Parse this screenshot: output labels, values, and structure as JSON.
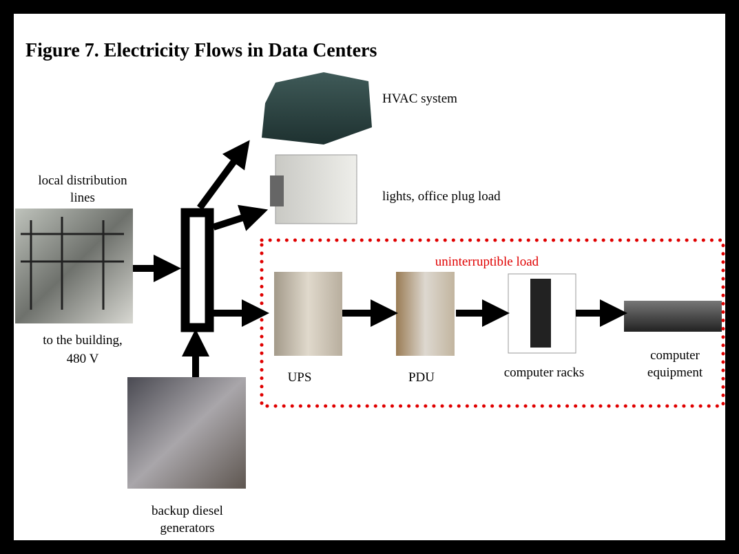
{
  "title": "Figure 7. Electricity Flows in Data Centers",
  "labels": {
    "hvac": [
      "HVAC system"
    ],
    "distribution_top": [
      "local distribution",
      "lines"
    ],
    "office": [
      "lights, office plug load"
    ],
    "uninterruptible": [
      "uninterruptible load"
    ],
    "distribution_bottom": [
      "to the building,",
      "480 V"
    ],
    "ups": [
      "UPS"
    ],
    "pdu": [
      "PDU"
    ],
    "racks": [
      "computer racks"
    ],
    "equipment": [
      "computer",
      "equipment"
    ],
    "generators": [
      "backup diesel",
      "generators"
    ]
  }
}
